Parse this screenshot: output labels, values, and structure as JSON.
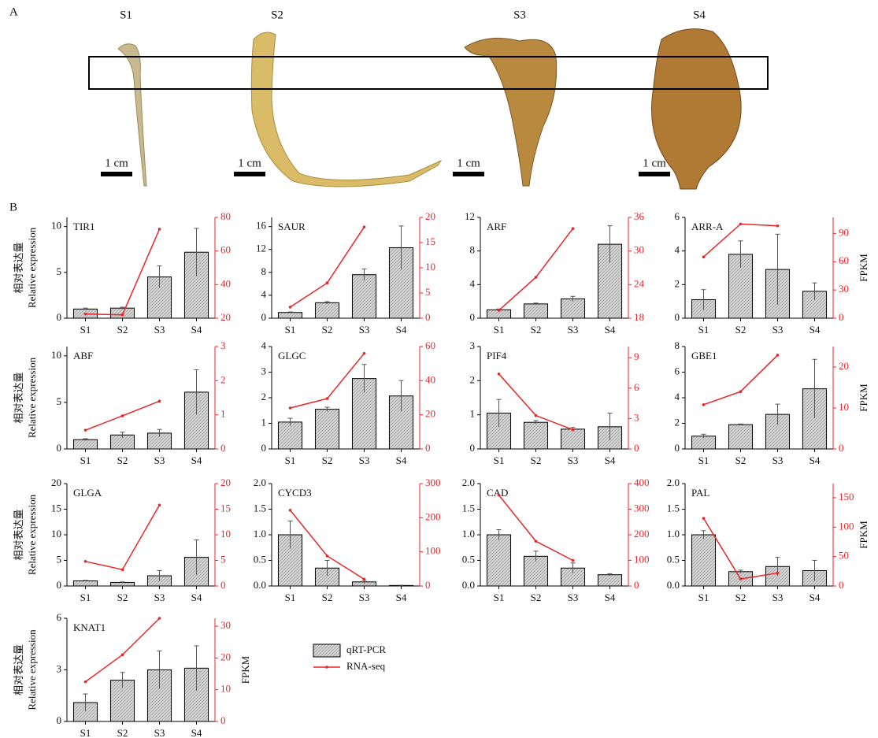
{
  "panel_a": {
    "label": "A",
    "stages": [
      "S1",
      "S2",
      "S3",
      "S4"
    ],
    "scale_bar": "1 cm"
  },
  "panel_b": {
    "label": "B"
  },
  "legend": {
    "series": [
      {
        "name": "qRT-PCR",
        "color": "#d4d4d4"
      },
      {
        "name": "RNA-seq",
        "color": "#e8262a"
      }
    ]
  },
  "chart_data": [
    {
      "type": "bar_line",
      "title": "TIR1",
      "ylabel_zh": "相对表达量",
      "ylabel": "Relative expression",
      "categories": [
        "S1",
        "S2",
        "S3",
        "S4"
      ],
      "ylim": [
        0,
        11
      ],
      "yticks": [
        0,
        5,
        10
      ],
      "y2lim": [
        20,
        80
      ],
      "y2ticks": [
        20,
        40,
        60,
        80
      ],
      "series": [
        {
          "values": [
            1.0,
            1.1,
            4.5,
            7.2
          ],
          "errors": [
            0.1,
            0.1,
            1.2,
            2.6
          ]
        },
        {
          "axis": "y2",
          "values": [
            22.5,
            22,
            73,
            null
          ]
        }
      ]
    },
    {
      "type": "bar_line",
      "title": "SAUR",
      "categories": [
        "S1",
        "S2",
        "S3",
        "S4"
      ],
      "ylim": [
        0,
        17.6
      ],
      "yticks": [
        0,
        4,
        8,
        12,
        16
      ],
      "y2lim": [
        0,
        20
      ],
      "y2ticks": [
        0,
        5,
        10,
        15,
        20
      ],
      "series": [
        {
          "values": [
            1.0,
            2.7,
            7.6,
            12.3
          ],
          "errors": [
            0.1,
            0.2,
            1.0,
            3.8
          ]
        },
        {
          "axis": "y2",
          "values": [
            2.2,
            7.0,
            18.1,
            null
          ]
        }
      ]
    },
    {
      "type": "bar_line",
      "title": "ARF",
      "categories": [
        "S1",
        "S2",
        "S3",
        "S4"
      ],
      "ylim": [
        0,
        12
      ],
      "yticks": [
        0,
        4,
        8,
        12
      ],
      "y2lim": [
        18,
        36
      ],
      "y2ticks": [
        18,
        24,
        30,
        36
      ],
      "series": [
        {
          "values": [
            1.0,
            1.7,
            2.3,
            8.8
          ],
          "errors": [
            0.1,
            0.1,
            0.3,
            2.2
          ]
        },
        {
          "axis": "y2",
          "values": [
            19.4,
            25.3,
            34.0,
            null
          ]
        }
      ]
    },
    {
      "type": "bar_line",
      "title": "ARR-A",
      "y2label": "FPKM",
      "categories": [
        "S1",
        "S2",
        "S3",
        "S4"
      ],
      "ylim": [
        0,
        6
      ],
      "yticks": [
        0,
        2,
        4,
        6
      ],
      "y2lim": [
        0,
        107
      ],
      "y2ticks": [
        0,
        30,
        60,
        90
      ],
      "series": [
        {
          "values": [
            1.1,
            3.8,
            2.9,
            1.6
          ],
          "errors": [
            0.6,
            0.8,
            2.1,
            0.5
          ]
        },
        {
          "axis": "y2",
          "values": [
            65,
            100,
            98,
            null
          ]
        }
      ]
    },
    {
      "type": "bar_line",
      "title": "ABF",
      "ylabel_zh": "相对表达量",
      "ylabel": "Relative expression",
      "categories": [
        "S1",
        "S2",
        "S3",
        "S4"
      ],
      "ylim": [
        0,
        11
      ],
      "yticks": [
        0,
        5,
        10
      ],
      "y2lim": [
        0,
        3
      ],
      "y2ticks": [
        0,
        1,
        2,
        3
      ],
      "series": [
        {
          "values": [
            1.0,
            1.5,
            1.7,
            6.1
          ],
          "errors": [
            0.1,
            0.3,
            0.4,
            2.4
          ]
        },
        {
          "axis": "y2",
          "values": [
            0.55,
            0.97,
            1.4,
            null
          ]
        }
      ]
    },
    {
      "type": "bar_line",
      "title": "GLGC",
      "categories": [
        "S1",
        "S2",
        "S3",
        "S4"
      ],
      "ylim": [
        0,
        4
      ],
      "yticks": [
        0,
        1,
        2,
        3,
        4
      ],
      "y2lim": [
        0,
        60
      ],
      "y2ticks": [
        0,
        20,
        40,
        60
      ],
      "series": [
        {
          "values": [
            1.05,
            1.55,
            2.75,
            2.07
          ],
          "errors": [
            0.15,
            0.08,
            0.55,
            0.6
          ]
        },
        {
          "axis": "y2",
          "values": [
            24,
            29.5,
            56,
            null
          ]
        }
      ]
    },
    {
      "type": "bar_line",
      "title": "PIF4",
      "categories": [
        "S1",
        "S2",
        "S3",
        "S4"
      ],
      "ylim": [
        0,
        3
      ],
      "yticks": [
        0,
        1,
        2,
        3
      ],
      "y2lim": [
        0,
        10.1
      ],
      "y2ticks": [
        0,
        3,
        6,
        9
      ],
      "series": [
        {
          "values": [
            1.05,
            0.78,
            0.58,
            0.65
          ],
          "errors": [
            0.4,
            0.05,
            0.05,
            0.4
          ]
        },
        {
          "axis": "y2",
          "values": [
            7.4,
            3.3,
            1.9,
            null
          ]
        }
      ]
    },
    {
      "type": "bar_line",
      "title": "GBE1",
      "y2label": "FPKM",
      "categories": [
        "S1",
        "S2",
        "S3",
        "S4"
      ],
      "ylim": [
        0,
        8
      ],
      "yticks": [
        0,
        2,
        4,
        6,
        8
      ],
      "y2lim": [
        0,
        25
      ],
      "y2ticks": [
        0,
        10,
        20
      ],
      "series": [
        {
          "values": [
            1.0,
            1.9,
            2.7,
            4.7
          ],
          "errors": [
            0.15,
            0.05,
            0.8,
            2.3
          ]
        },
        {
          "axis": "y2",
          "values": [
            10.8,
            14,
            22.9,
            null
          ]
        }
      ]
    },
    {
      "type": "bar_line",
      "title": "GLGA",
      "ylabel_zh": "相对表达量",
      "ylabel": "Relative expression",
      "categories": [
        "S1",
        "S2",
        "S3",
        "S4"
      ],
      "ylim": [
        0,
        20
      ],
      "yticks": [
        0,
        5,
        10,
        15,
        20
      ],
      "y2lim": [
        0,
        20
      ],
      "y2ticks": [
        0,
        5,
        10,
        15,
        20
      ],
      "series": [
        {
          "values": [
            1.0,
            0.7,
            2.0,
            5.6
          ],
          "errors": [
            0.1,
            0.1,
            1.0,
            3.4
          ]
        },
        {
          "axis": "y2",
          "values": [
            4.8,
            3.2,
            15.8,
            null
          ]
        }
      ]
    },
    {
      "type": "bar_line",
      "title": "CYCD3",
      "categories": [
        "S1",
        "S2",
        "S3",
        "S4"
      ],
      "ylim": [
        0,
        2
      ],
      "yticks": [
        {
          "value": 0,
          "label": "0.0"
        },
        0.5,
        {
          "value": 1,
          "label": "1.0"
        },
        1.5,
        {
          "value": 2,
          "label": "2.0"
        }
      ],
      "y2lim": [
        0,
        300
      ],
      "y2ticks": [
        0,
        100,
        200,
        300
      ],
      "series": [
        {
          "values": [
            1.0,
            0.35,
            0.08,
            0.01
          ],
          "errors": [
            0.27,
            0.15,
            0.03,
            0.005
          ]
        },
        {
          "axis": "y2",
          "values": [
            222,
            88,
            20,
            null
          ]
        }
      ]
    },
    {
      "type": "bar_line",
      "title": "CAD",
      "categories": [
        "S1",
        "S2",
        "S3",
        "S4"
      ],
      "ylim": [
        0,
        2
      ],
      "yticks": [
        {
          "value": 0,
          "label": "0.0"
        },
        0.5,
        {
          "value": 1,
          "label": "1.0"
        },
        1.5,
        {
          "value": 2,
          "label": "2.0"
        }
      ],
      "y2lim": [
        0,
        400
      ],
      "y2ticks": [
        0,
        100,
        200,
        300,
        400
      ],
      "series": [
        {
          "values": [
            1.0,
            0.58,
            0.35,
            0.22
          ],
          "errors": [
            0.1,
            0.1,
            0.1,
            0.02
          ]
        },
        {
          "axis": "y2",
          "values": [
            355,
            175,
            100,
            null
          ]
        }
      ]
    },
    {
      "type": "bar_line",
      "title": "PAL",
      "y2label": "FPKM",
      "categories": [
        "S1",
        "S2",
        "S3",
        "S4"
      ],
      "ylim": [
        0,
        2
      ],
      "yticks": [
        {
          "value": 0,
          "label": "0.0"
        },
        0.5,
        {
          "value": 1,
          "label": "1.0"
        },
        1.5,
        {
          "value": 2,
          "label": "2.0"
        }
      ],
      "y2lim": [
        0,
        174
      ],
      "y2ticks": [
        0,
        50,
        100,
        150
      ],
      "series": [
        {
          "values": [
            1.0,
            0.28,
            0.38,
            0.3
          ],
          "errors": [
            0.08,
            0.03,
            0.18,
            0.2
          ]
        },
        {
          "axis": "y2",
          "values": [
            115,
            12,
            22,
            null
          ]
        }
      ]
    },
    {
      "type": "bar_line",
      "title": "KNAT1",
      "ylabel_zh": "相对表达量",
      "ylabel": "Relative expression",
      "y2label": "FPKM",
      "categories": [
        "S1",
        "S2",
        "S3",
        "S4"
      ],
      "ylim": [
        0,
        6
      ],
      "yticks": [
        0,
        3,
        6
      ],
      "y2lim": [
        0,
        32.5
      ],
      "y2ticks": [
        0,
        10,
        20,
        30
      ],
      "series": [
        {
          "values": [
            1.1,
            2.4,
            3.0,
            3.1
          ],
          "errors": [
            0.5,
            0.45,
            1.1,
            1.3
          ]
        },
        {
          "axis": "y2",
          "values": [
            12.5,
            21,
            32.5,
            null
          ]
        }
      ]
    }
  ]
}
